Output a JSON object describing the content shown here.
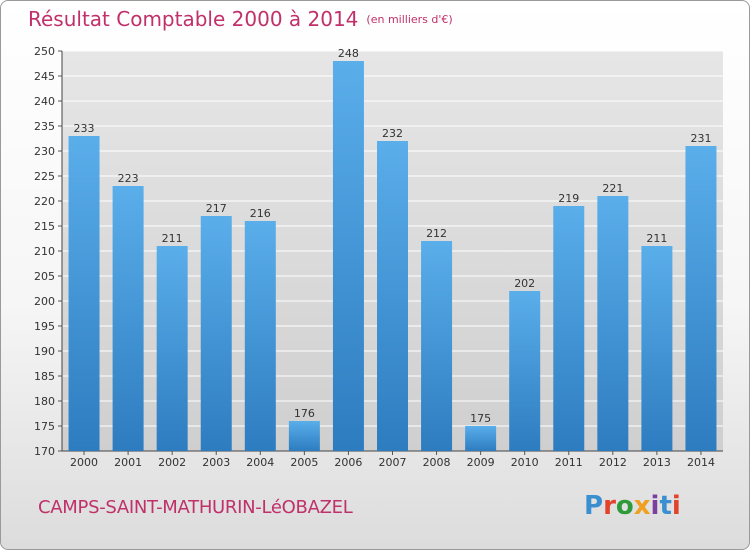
{
  "title": "Résultat Comptable 2000 à 2014",
  "unit": "(en milliers d'€)",
  "commune": "CAMPS-SAINT-MATHURIN-LéOBAZEL",
  "brand": {
    "letters": [
      "P",
      "r",
      "o",
      "x",
      "i",
      "t",
      "i"
    ]
  },
  "colors": {
    "bar_light": "#5aaeea",
    "bar_dark": "#2d7cc0",
    "title": "#c0306a",
    "grid": "#ffffff",
    "plot_bg": "#dcdcdc"
  },
  "chart_data": {
    "type": "bar",
    "title": "Résultat Comptable 2000 à 2014",
    "subtitle": "(en milliers d'€)",
    "xlabel": "",
    "ylabel": "",
    "categories": [
      "2000",
      "2001",
      "2002",
      "2003",
      "2004",
      "2005",
      "2006",
      "2007",
      "2008",
      "2009",
      "2010",
      "2011",
      "2012",
      "2013",
      "2014"
    ],
    "values": [
      233,
      223,
      211,
      217,
      216,
      176,
      248,
      232,
      212,
      175,
      202,
      219,
      221,
      211,
      231
    ],
    "ylim": [
      170,
      250
    ],
    "yticks": [
      170,
      175,
      180,
      185,
      190,
      195,
      200,
      205,
      210,
      215,
      220,
      225,
      230,
      235,
      240,
      245,
      250
    ],
    "grid": true
  }
}
